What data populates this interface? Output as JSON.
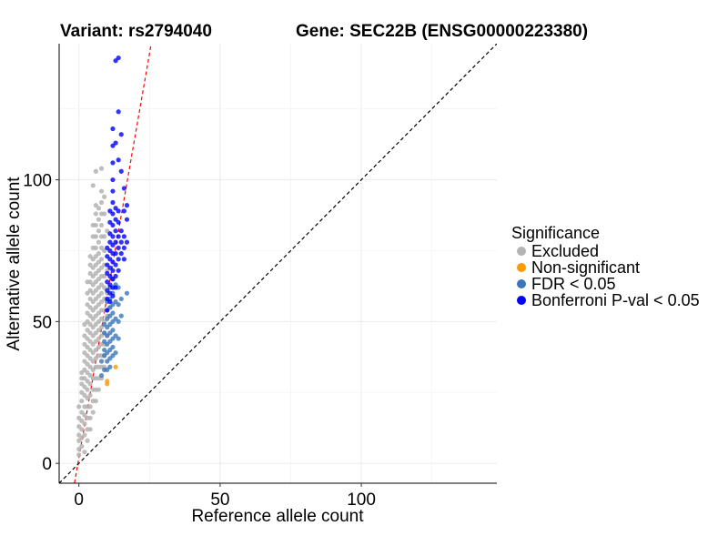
{
  "titles": {
    "variant": "Variant: rs2794040",
    "gene": "Gene: SEC22B (ENSG00000223380)"
  },
  "chart_data": {
    "type": "scatter",
    "xlabel": "Reference allele count",
    "ylabel": "Alternative allele count",
    "xlim": [
      -7,
      148
    ],
    "ylim": [
      -7,
      148
    ],
    "x_ticks": [
      0,
      50,
      100
    ],
    "y_ticks": [
      0,
      50,
      100
    ],
    "grid": true,
    "legend_placement": "right",
    "reference_lines": [
      {
        "name": "y = x",
        "slope": 1,
        "intercept": 0,
        "color": "#000000",
        "style": "dashed"
      },
      {
        "name": "fit",
        "slope": 5.7,
        "intercept": 2,
        "color": "#ff0000",
        "style": "dashed"
      }
    ],
    "legend": {
      "title": "Significance",
      "entries": [
        {
          "key": "excluded",
          "label": "Excluded",
          "color": "#b3b3b3"
        },
        {
          "key": "nonsig",
          "label": "Non-significant",
          "color": "#ff9900"
        },
        {
          "key": "fdr",
          "label": "FDR < 0.05",
          "color": "#3a76b8"
        },
        {
          "key": "bonf",
          "label": "Bonferroni P-val < 0.05",
          "color": "#0000ff"
        }
      ]
    },
    "series": [
      {
        "key": "excluded",
        "points": [
          [
            0,
            3
          ],
          [
            0,
            5
          ],
          [
            0,
            8
          ],
          [
            0,
            10
          ],
          [
            0,
            13
          ],
          [
            0,
            16
          ],
          [
            0,
            20
          ],
          [
            1,
            6
          ],
          [
            1,
            9
          ],
          [
            1,
            12
          ],
          [
            1,
            15
          ],
          [
            1,
            18
          ],
          [
            1,
            22
          ],
          [
            1,
            25
          ],
          [
            1,
            28
          ],
          [
            1,
            30
          ],
          [
            1,
            32
          ],
          [
            2,
            4
          ],
          [
            2,
            10
          ],
          [
            2,
            14
          ],
          [
            2,
            17
          ],
          [
            2,
            20
          ],
          [
            2,
            24
          ],
          [
            2,
            27
          ],
          [
            2,
            30
          ],
          [
            2,
            33
          ],
          [
            2,
            36
          ],
          [
            2,
            39
          ],
          [
            2,
            42
          ],
          [
            2,
            45
          ],
          [
            2,
            49
          ],
          [
            3,
            8
          ],
          [
            3,
            12
          ],
          [
            3,
            16
          ],
          [
            3,
            20
          ],
          [
            3,
            23
          ],
          [
            3,
            26
          ],
          [
            3,
            29
          ],
          [
            3,
            32
          ],
          [
            3,
            35
          ],
          [
            3,
            38
          ],
          [
            3,
            41
          ],
          [
            3,
            44
          ],
          [
            3,
            47
          ],
          [
            3,
            50
          ],
          [
            3,
            53
          ],
          [
            3,
            56
          ],
          [
            3,
            60
          ],
          [
            3,
            64
          ],
          [
            4,
            12
          ],
          [
            4,
            16
          ],
          [
            4,
            20
          ],
          [
            4,
            24
          ],
          [
            4,
            28
          ],
          [
            4,
            31
          ],
          [
            4,
            34
          ],
          [
            4,
            37
          ],
          [
            4,
            40
          ],
          [
            4,
            43
          ],
          [
            4,
            46
          ],
          [
            4,
            49
          ],
          [
            4,
            52
          ],
          [
            4,
            55
          ],
          [
            4,
            58
          ],
          [
            4,
            61
          ],
          [
            4,
            64
          ],
          [
            4,
            67
          ],
          [
            4,
            70
          ],
          [
            4,
            73
          ],
          [
            5,
            18
          ],
          [
            5,
            22
          ],
          [
            5,
            26
          ],
          [
            5,
            30
          ],
          [
            5,
            33
          ],
          [
            5,
            36
          ],
          [
            5,
            39
          ],
          [
            5,
            42
          ],
          [
            5,
            45
          ],
          [
            5,
            48
          ],
          [
            5,
            51
          ],
          [
            5,
            54
          ],
          [
            5,
            57
          ],
          [
            5,
            60
          ],
          [
            5,
            63
          ],
          [
            5,
            66
          ],
          [
            5,
            69
          ],
          [
            5,
            72
          ],
          [
            5,
            76
          ],
          [
            5,
            80
          ],
          [
            5,
            84
          ],
          [
            5,
            98
          ],
          [
            6,
            22
          ],
          [
            6,
            26
          ],
          [
            6,
            30
          ],
          [
            6,
            34
          ],
          [
            6,
            37
          ],
          [
            6,
            40
          ],
          [
            6,
            43
          ],
          [
            6,
            46
          ],
          [
            6,
            49
          ],
          [
            6,
            52
          ],
          [
            6,
            55
          ],
          [
            6,
            58
          ],
          [
            6,
            61
          ],
          [
            6,
            64
          ],
          [
            6,
            67
          ],
          [
            6,
            70
          ],
          [
            6,
            73
          ],
          [
            6,
            76
          ],
          [
            6,
            80
          ],
          [
            6,
            84
          ],
          [
            6,
            88
          ],
          [
            6,
            91
          ],
          [
            6,
            103
          ],
          [
            7,
            26
          ],
          [
            7,
            30
          ],
          [
            7,
            34
          ],
          [
            7,
            38
          ],
          [
            7,
            41
          ],
          [
            7,
            44
          ],
          [
            7,
            47
          ],
          [
            7,
            50
          ],
          [
            7,
            53
          ],
          [
            7,
            56
          ],
          [
            7,
            59
          ],
          [
            7,
            62
          ],
          [
            7,
            65
          ],
          [
            7,
            68
          ],
          [
            7,
            71
          ],
          [
            7,
            74
          ],
          [
            7,
            78
          ],
          [
            7,
            82
          ],
          [
            7,
            86
          ],
          [
            7,
            90
          ],
          [
            8,
            30
          ],
          [
            8,
            34
          ],
          [
            8,
            38
          ],
          [
            8,
            42
          ],
          [
            8,
            45
          ],
          [
            8,
            48
          ],
          [
            8,
            51
          ],
          [
            8,
            54
          ],
          [
            8,
            57
          ],
          [
            8,
            60
          ],
          [
            8,
            63
          ],
          [
            8,
            66
          ],
          [
            8,
            69
          ],
          [
            8,
            72
          ],
          [
            8,
            76
          ],
          [
            8,
            80
          ],
          [
            8,
            84
          ],
          [
            8,
            88
          ],
          [
            8,
            92
          ],
          [
            8,
            96
          ],
          [
            8,
            104
          ],
          [
            9,
            34
          ],
          [
            9,
            38
          ],
          [
            9,
            42
          ],
          [
            9,
            46
          ],
          [
            9,
            50
          ],
          [
            9,
            54
          ],
          [
            9,
            58
          ],
          [
            9,
            62
          ],
          [
            9,
            66
          ],
          [
            9,
            70
          ],
          [
            9,
            75
          ],
          [
            9,
            80
          ],
          [
            9,
            88
          ],
          [
            9,
            94
          ],
          [
            10,
            45
          ],
          [
            10,
            52
          ],
          [
            10,
            60
          ],
          [
            10,
            68
          ],
          [
            10,
            82
          ],
          [
            11,
            55
          ]
        ]
      },
      {
        "key": "nonsig",
        "points": [
          [
            10,
            28
          ],
          [
            10,
            29
          ],
          [
            13,
            34
          ]
        ]
      },
      {
        "key": "fdr",
        "points": [
          [
            8,
            31
          ],
          [
            8,
            36
          ],
          [
            9,
            33
          ],
          [
            9,
            38
          ],
          [
            9,
            40
          ],
          [
            9,
            43
          ],
          [
            9,
            46
          ],
          [
            9,
            49
          ],
          [
            10,
            33
          ],
          [
            10,
            36
          ],
          [
            10,
            39
          ],
          [
            10,
            42
          ],
          [
            10,
            45
          ],
          [
            10,
            48
          ],
          [
            10,
            51
          ],
          [
            10,
            54
          ],
          [
            10,
            57
          ],
          [
            11,
            34
          ],
          [
            11,
            37
          ],
          [
            11,
            40
          ],
          [
            11,
            43
          ],
          [
            11,
            46
          ],
          [
            11,
            49
          ],
          [
            11,
            52
          ],
          [
            11,
            55
          ],
          [
            11,
            58
          ],
          [
            11,
            62
          ],
          [
            12,
            38
          ],
          [
            12,
            41
          ],
          [
            12,
            44
          ],
          [
            12,
            47
          ],
          [
            12,
            50
          ],
          [
            12,
            53
          ],
          [
            12,
            56
          ],
          [
            12,
            60
          ],
          [
            12,
            65
          ],
          [
            13,
            39
          ],
          [
            13,
            45
          ],
          [
            13,
            51
          ],
          [
            13,
            57
          ],
          [
            13,
            63
          ],
          [
            14,
            44
          ],
          [
            14,
            50
          ],
          [
            14,
            56
          ],
          [
            14,
            62
          ],
          [
            15,
            52
          ],
          [
            15,
            58
          ],
          [
            17,
            60
          ]
        ]
      },
      {
        "key": "bonf",
        "points": [
          [
            10,
            54
          ],
          [
            10,
            58
          ],
          [
            10,
            61
          ],
          [
            10,
            64
          ],
          [
            10,
            67
          ],
          [
            10,
            70
          ],
          [
            10,
            73
          ],
          [
            10,
            76
          ],
          [
            11,
            57
          ],
          [
            11,
            60
          ],
          [
            11,
            63
          ],
          [
            11,
            66
          ],
          [
            11,
            69
          ],
          [
            11,
            72
          ],
          [
            11,
            75
          ],
          [
            11,
            78
          ],
          [
            11,
            81
          ],
          [
            11,
            85
          ],
          [
            11,
            89
          ],
          [
            12,
            59
          ],
          [
            12,
            62
          ],
          [
            12,
            65
          ],
          [
            12,
            68
          ],
          [
            12,
            71
          ],
          [
            12,
            74
          ],
          [
            12,
            77
          ],
          [
            12,
            80
          ],
          [
            12,
            84
          ],
          [
            12,
            88
          ],
          [
            12,
            92
          ],
          [
            12,
            96
          ],
          [
            12,
            100
          ],
          [
            12,
            106
          ],
          [
            12,
            112
          ],
          [
            12,
            118
          ],
          [
            13,
            62
          ],
          [
            13,
            66
          ],
          [
            13,
            70
          ],
          [
            13,
            74
          ],
          [
            13,
            78
          ],
          [
            13,
            82
          ],
          [
            13,
            86
          ],
          [
            13,
            90
          ],
          [
            13,
            113
          ],
          [
            13,
            142
          ],
          [
            14,
            68
          ],
          [
            14,
            72
          ],
          [
            14,
            76
          ],
          [
            14,
            80
          ],
          [
            14,
            85
          ],
          [
            14,
            89
          ],
          [
            14,
            107
          ],
          [
            14,
            124
          ],
          [
            14,
            143
          ],
          [
            15,
            74
          ],
          [
            15,
            78
          ],
          [
            15,
            82
          ],
          [
            15,
            103
          ],
          [
            15,
            116
          ],
          [
            16,
            72
          ],
          [
            16,
            76
          ],
          [
            16,
            80
          ],
          [
            16,
            89
          ],
          [
            16,
            97
          ],
          [
            17,
            78
          ],
          [
            17,
            86
          ],
          [
            17,
            91
          ]
        ]
      }
    ]
  }
}
